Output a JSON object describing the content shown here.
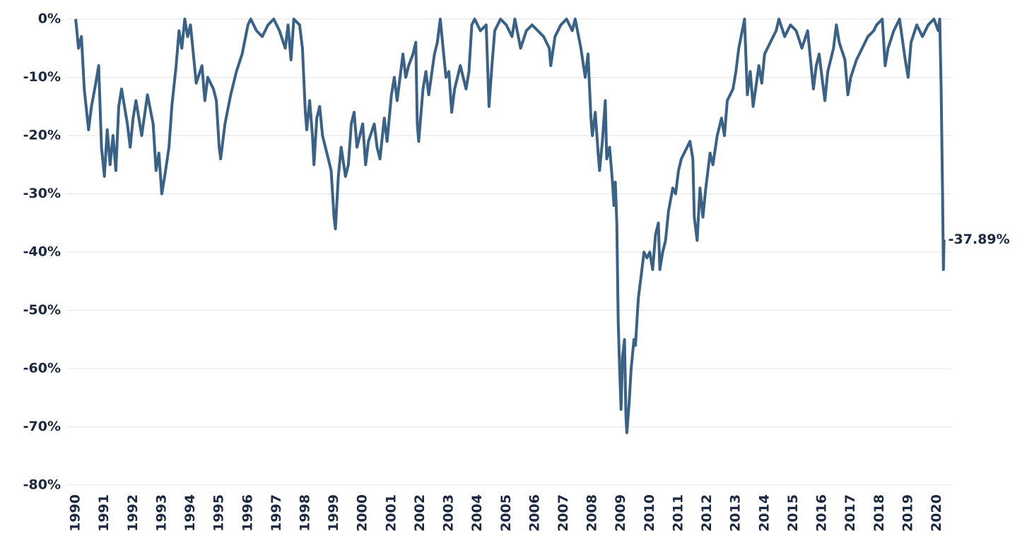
{
  "chart_data": {
    "type": "line",
    "x": [
      1990.0,
      1990.1,
      1990.2,
      1990.3,
      1990.45,
      1990.55,
      1990.7,
      1990.8,
      1990.9,
      1991.0,
      1991.1,
      1991.2,
      1991.3,
      1991.4,
      1991.5,
      1991.6,
      1991.8,
      1991.9,
      1992.0,
      1992.1,
      1992.3,
      1992.5,
      1992.7,
      1992.8,
      1992.9,
      1993.0,
      1993.1,
      1993.25,
      1993.35,
      1993.5,
      1993.6,
      1993.7,
      1993.8,
      1993.9,
      1994.0,
      1994.1,
      1994.2,
      1994.4,
      1994.5,
      1994.6,
      1994.8,
      1994.9,
      1995.0,
      1995.05,
      1995.2,
      1995.4,
      1995.6,
      1995.8,
      1996.0,
      1996.1,
      1996.3,
      1996.5,
      1996.7,
      1996.9,
      1997.1,
      1997.3,
      1997.4,
      1997.5,
      1997.6,
      1997.8,
      1997.9,
      1998.0,
      1998.05,
      1998.15,
      1998.25,
      1998.3,
      1998.4,
      1998.5,
      1998.6,
      1998.8,
      1998.9,
      1999.0,
      1999.05,
      1999.15,
      1999.25,
      1999.4,
      1999.5,
      1999.6,
      1999.7,
      1999.8,
      1999.9,
      2000.0,
      2000.1,
      2000.2,
      2000.4,
      2000.5,
      2000.6,
      2000.75,
      2000.85,
      2001.0,
      2001.1,
      2001.2,
      2001.4,
      2001.5,
      2001.6,
      2001.75,
      2001.85,
      2001.9,
      2001.95,
      2002.1,
      2002.2,
      2002.3,
      2002.5,
      2002.6,
      2002.7,
      2002.8,
      2002.9,
      2003.0,
      2003.1,
      2003.2,
      2003.4,
      2003.6,
      2003.7,
      2003.8,
      2003.9,
      2004.1,
      2004.3,
      2004.4,
      2004.5,
      2004.6,
      2004.8,
      2005.0,
      2005.2,
      2005.3,
      2005.5,
      2005.7,
      2005.9,
      2006.1,
      2006.3,
      2006.5,
      2006.55,
      2006.7,
      2006.9,
      2007.1,
      2007.3,
      2007.4,
      2007.6,
      2007.75,
      2007.85,
      2007.95,
      2008.0,
      2008.1,
      2008.2,
      2008.25,
      2008.35,
      2008.45,
      2008.5,
      2008.6,
      2008.7,
      2008.75,
      2008.8,
      2008.85,
      2008.9,
      2008.95,
      2009.0,
      2009.05,
      2009.12,
      2009.17,
      2009.2,
      2009.28,
      2009.35,
      2009.45,
      2009.5,
      2009.6,
      2009.7,
      2009.8,
      2009.9,
      2010.0,
      2010.1,
      2010.2,
      2010.3,
      2010.35,
      2010.45,
      2010.55,
      2010.65,
      2010.8,
      2010.9,
      2011.0,
      2011.1,
      2011.3,
      2011.4,
      2011.5,
      2011.55,
      2011.65,
      2011.75,
      2011.85,
      2011.95,
      2012.1,
      2012.2,
      2012.35,
      2012.5,
      2012.6,
      2012.7,
      2012.9,
      2013.0,
      2013.1,
      2013.3,
      2013.4,
      2013.5,
      2013.6,
      2013.8,
      2013.9,
      2014.0,
      2014.2,
      2014.4,
      2014.5,
      2014.7,
      2014.9,
      2015.1,
      2015.3,
      2015.5,
      2015.6,
      2015.7,
      2015.8,
      2015.9,
      2016.0,
      2016.1,
      2016.2,
      2016.4,
      2016.5,
      2016.6,
      2016.8,
      2016.9,
      2017.0,
      2017.2,
      2017.4,
      2017.6,
      2017.8,
      2017.9,
      2018.1,
      2018.2,
      2018.3,
      2018.5,
      2018.7,
      2018.9,
      2019.0,
      2019.1,
      2019.3,
      2019.5,
      2019.7,
      2019.9,
      2020.05,
      2020.1,
      2020.15,
      2020.2,
      2020.23,
      2020.25
    ],
    "series": [
      {
        "color": "#3a6186",
        "values": [
          0,
          -5,
          -3,
          -12,
          -19,
          -15,
          -11,
          -8,
          -22,
          -27,
          -19,
          -25,
          -20,
          -26,
          -15,
          -12,
          -18,
          -22,
          -17,
          -14,
          -20,
          -13,
          -18,
          -26,
          -23,
          -30,
          -27,
          -22,
          -15,
          -8,
          -2,
          -5,
          0,
          -3,
          -1,
          -6,
          -11,
          -8,
          -14,
          -10,
          -12,
          -14,
          -22,
          -24,
          -18,
          -13,
          -9,
          -6,
          -1,
          0,
          -2,
          -3,
          -1,
          0,
          -2,
          -5,
          -1,
          -7,
          0,
          -1,
          -5,
          -16,
          -19,
          -14,
          -20,
          -25,
          -17,
          -15,
          -20,
          -24,
          -26,
          -34,
          -36,
          -27,
          -22,
          -27,
          -25,
          -18,
          -16,
          -22,
          -20,
          -18,
          -25,
          -21,
          -18,
          -22,
          -24,
          -17,
          -21,
          -13,
          -10,
          -14,
          -6,
          -10,
          -8,
          -6,
          -4,
          -18,
          -21,
          -12,
          -9,
          -13,
          -6,
          -4,
          0,
          -5,
          -10,
          -9,
          -16,
          -12,
          -8,
          -12,
          -9,
          -1,
          0,
          -2,
          -1,
          -15,
          -8,
          -2,
          0,
          -1,
          -3,
          0,
          -5,
          -2,
          -1,
          -2,
          -3,
          -5,
          -8,
          -3,
          -1,
          0,
          -2,
          0,
          -5,
          -10,
          -6,
          -17,
          -20,
          -16,
          -23,
          -26,
          -21,
          -14,
          -24,
          -22,
          -28,
          -32,
          -28,
          -35,
          -52,
          -60,
          -67,
          -58,
          -55,
          -68,
          -71,
          -66,
          -60,
          -55,
          -56,
          -48,
          -44,
          -40,
          -41,
          -40,
          -43,
          -37,
          -35,
          -43,
          -40,
          -38,
          -33,
          -29,
          -30,
          -26,
          -24,
          -22,
          -21,
          -24,
          -34,
          -38,
          -29,
          -34,
          -29,
          -23,
          -25,
          -20,
          -17,
          -20,
          -14,
          -12,
          -9,
          -5,
          0,
          -13,
          -9,
          -15,
          -8,
          -11,
          -6,
          -4,
          -2,
          0,
          -3,
          -1,
          -2,
          -5,
          -2,
          -7,
          -12,
          -8,
          -6,
          -10,
          -14,
          -9,
          -5,
          -1,
          -4,
          -7,
          -13,
          -10,
          -7,
          -5,
          -3,
          -2,
          -1,
          0,
          -8,
          -5,
          -2,
          0,
          -7,
          -10,
          -4,
          -1,
          -3,
          -1,
          0,
          -2,
          0,
          -12,
          -30,
          -43,
          -37.89
        ]
      }
    ],
    "annotation": "-37.89%",
    "xlim": [
      1989.9,
      2020.8
    ],
    "xticks": [
      1990,
      1991,
      1992,
      1993,
      1994,
      1995,
      1996,
      1997,
      1998,
      1999,
      2000,
      2001,
      2002,
      2003,
      2004,
      2005,
      2006,
      2007,
      2008,
      2009,
      2010,
      2011,
      2012,
      2013,
      2014,
      2015,
      2016,
      2017,
      2018,
      2019,
      2020
    ],
    "ylim": [
      -80,
      0
    ],
    "yticks": [
      {
        "value": 0,
        "label": "0%"
      },
      {
        "value": -10,
        "label": "-10%"
      },
      {
        "value": -20,
        "label": "-20%"
      },
      {
        "value": -30,
        "label": "-30%"
      },
      {
        "value": -40,
        "label": "-40%"
      },
      {
        "value": -50,
        "label": "-50%"
      },
      {
        "value": -60,
        "label": "-60%"
      },
      {
        "value": -70,
        "label": "-70%"
      },
      {
        "value": -80,
        "label": "-80%"
      }
    ],
    "grid": true
  }
}
